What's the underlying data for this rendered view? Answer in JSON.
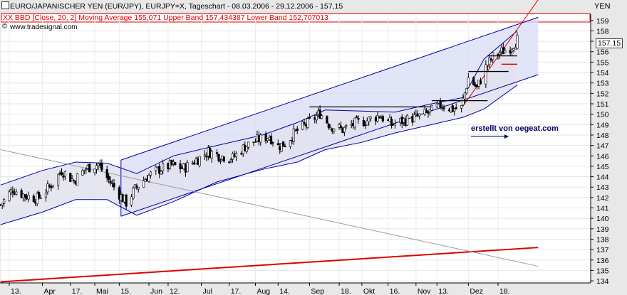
{
  "header": {
    "title_line": "EURO/JAPANISCHER YEN (EUR/JPY), EURJPY=X, Tageschart - 08.03.2006 - 29.12.2006 - 157,15",
    "indicator_prefix": "XX BBD",
    "indicator_line": "[Close, 20, 2] Moving Average 155,071 Upper Band 157,434387 Lower Band 152,707013",
    "source": "www.tradesignal.com",
    "unit": "YEN",
    "watermark": "erstellt von oegeat.com"
  },
  "colors": {
    "background": "#e8e8e8",
    "plot_background": "#ffffff",
    "candle": "#000000",
    "band_fill": "#e2e2ee",
    "band_line": "#0000aa",
    "channel_fill": "#d8dcf6",
    "channel_line": "#0000aa",
    "trend_red": "#dd0000",
    "indicator_red": "#dd0000",
    "indicator_blue": "#0000aa"
  },
  "chart_data": {
    "type": "candlestick",
    "title": "EURO/JAPANISCHER YEN (EUR/JPY), EURJPY=X, Tageschart - 08.03.2006 - 29.12.2006 - 157,15",
    "ylabel": "YEN",
    "ylim": [
      133.8,
      159.6
    ],
    "y_ticks": [
      134,
      135,
      136,
      137,
      138,
      139,
      140,
      141,
      142,
      143,
      144,
      145,
      146,
      147,
      148,
      149,
      150,
      151,
      152,
      153,
      154,
      155,
      156,
      157,
      158,
      159
    ],
    "x_ticks": [
      {
        "label": "13.",
        "date": "2006-03-13"
      },
      {
        "label": "Apr",
        "date": "2006-04-01"
      },
      {
        "label": "17.",
        "date": "2006-04-17"
      },
      {
        "label": "Mai",
        "date": "2006-05-01"
      },
      {
        "label": "15.",
        "date": "2006-05-15"
      },
      {
        "label": "Jun",
        "date": "2006-06-01"
      },
      {
        "label": "12.",
        "date": "2006-06-12"
      },
      {
        "label": "Jul",
        "date": "2006-07-01"
      },
      {
        "label": "17.",
        "date": "2006-07-17"
      },
      {
        "label": "Aug",
        "date": "2006-08-01"
      },
      {
        "label": "14.",
        "date": "2006-08-14"
      },
      {
        "label": "Sep",
        "date": "2006-09-01"
      },
      {
        "label": "18.",
        "date": "2006-09-18"
      },
      {
        "label": "Okt",
        "date": "2006-10-01"
      },
      {
        "label": "16.",
        "date": "2006-10-16"
      },
      {
        "label": "Nov",
        "date": "2006-11-01"
      },
      {
        "label": "13.",
        "date": "2006-11-13"
      },
      {
        "label": "Dez",
        "date": "2006-12-01"
      },
      {
        "label": "18.",
        "date": "2006-12-18"
      }
    ],
    "last_price": {
      "label": "157.15",
      "value": 157.15
    },
    "close_trajectory": [
      [
        "2006-03-08",
        141.3
      ],
      [
        "2006-03-15",
        142.8
      ],
      [
        "2006-03-22",
        142.2
      ],
      [
        "2006-03-29",
        141.9
      ],
      [
        "2006-04-05",
        143.0
      ],
      [
        "2006-04-12",
        144.6
      ],
      [
        "2006-04-19",
        143.6
      ],
      [
        "2006-04-26",
        144.8
      ],
      [
        "2006-05-03",
        145.2
      ],
      [
        "2006-05-08",
        143.9
      ],
      [
        "2006-05-12",
        143.0
      ],
      [
        "2006-05-16",
        142.1
      ],
      [
        "2006-05-19",
        141.5
      ],
      [
        "2006-05-24",
        142.8
      ],
      [
        "2006-05-31",
        144.0
      ],
      [
        "2006-06-07",
        144.7
      ],
      [
        "2006-06-14",
        145.1
      ],
      [
        "2006-06-21",
        144.8
      ],
      [
        "2006-06-28",
        145.6
      ],
      [
        "2006-07-05",
        146.4
      ],
      [
        "2006-07-12",
        146.0
      ],
      [
        "2006-07-19",
        145.8
      ],
      [
        "2006-07-26",
        146.9
      ],
      [
        "2006-08-02",
        147.5
      ],
      [
        "2006-08-09",
        147.9
      ],
      [
        "2006-08-14",
        146.9
      ],
      [
        "2006-08-18",
        147.2
      ],
      [
        "2006-08-24",
        148.3
      ],
      [
        "2006-08-31",
        149.1
      ],
      [
        "2006-09-07",
        150.1
      ],
      [
        "2006-09-13",
        148.9
      ],
      [
        "2006-09-20",
        148.5
      ],
      [
        "2006-09-27",
        149.1
      ],
      [
        "2006-10-04",
        149.4
      ],
      [
        "2006-10-11",
        149.9
      ],
      [
        "2006-10-18",
        149.0
      ],
      [
        "2006-10-25",
        149.4
      ],
      [
        "2006-11-01",
        149.7
      ],
      [
        "2006-11-08",
        150.1
      ],
      [
        "2006-11-15",
        150.9
      ],
      [
        "2006-11-22",
        150.5
      ],
      [
        "2006-11-27",
        150.6
      ],
      [
        "2006-12-01",
        153.5
      ],
      [
        "2006-12-06",
        152.5
      ],
      [
        "2006-12-11",
        154.5
      ],
      [
        "2006-12-15",
        155.5
      ],
      [
        "2006-12-20",
        156.0
      ],
      [
        "2006-12-25",
        156.4
      ],
      [
        "2006-12-29",
        157.15
      ]
    ],
    "bollinger": {
      "period": 20,
      "stddev": 2,
      "moving_average": 155.071,
      "upper": 157.434387,
      "lower": 152.707013,
      "upper_path": [
        [
          "2006-03-08",
          143.2
        ],
        [
          "2006-04-01",
          144.6
        ],
        [
          "2006-04-20",
          145.4
        ],
        [
          "2006-05-08",
          145.3
        ],
        [
          "2006-05-25",
          144.3
        ],
        [
          "2006-06-15",
          146.0
        ],
        [
          "2006-07-10",
          147.0
        ],
        [
          "2006-08-05",
          148.0
        ],
        [
          "2006-08-25",
          149.2
        ],
        [
          "2006-09-10",
          150.4
        ],
        [
          "2006-10-01",
          150.3
        ],
        [
          "2006-10-20",
          150.2
        ],
        [
          "2006-11-10",
          151.0
        ],
        [
          "2006-11-28",
          151.6
        ],
        [
          "2006-12-10",
          155.3
        ],
        [
          "2006-12-29",
          158.0
        ]
      ],
      "lower_path": [
        [
          "2006-03-08",
          139.4
        ],
        [
          "2006-04-01",
          140.6
        ],
        [
          "2006-04-20",
          141.8
        ],
        [
          "2006-05-08",
          141.8
        ],
        [
          "2006-05-25",
          140.3
        ],
        [
          "2006-06-15",
          141.6
        ],
        [
          "2006-07-10",
          143.5
        ],
        [
          "2006-08-05",
          144.7
        ],
        [
          "2006-08-25",
          145.4
        ],
        [
          "2006-09-10",
          146.6
        ],
        [
          "2006-10-01",
          147.3
        ],
        [
          "2006-10-20",
          148.2
        ],
        [
          "2006-11-10",
          149.0
        ],
        [
          "2006-11-28",
          149.7
        ],
        [
          "2006-12-10",
          150.5
        ],
        [
          "2006-12-29",
          152.8
        ]
      ]
    },
    "trend_channel": {
      "upper": [
        [
          "2006-05-16",
          145.6
        ],
        [
          "2007-01-10",
          159.3
        ]
      ],
      "lower": [
        [
          "2006-05-16",
          140.2
        ],
        [
          "2007-01-10",
          153.8
        ]
      ]
    },
    "trendlines": [
      {
        "name": "long-term red support",
        "color": "red",
        "points": [
          [
            "2006-03-08",
            133.9
          ],
          [
            "2007-01-10",
            137.2
          ]
        ]
      },
      {
        "name": "steep red uptrend",
        "color": "red",
        "points": [
          [
            "2006-11-28",
            150.8
          ],
          [
            "2007-01-10",
            161.0
          ]
        ]
      },
      {
        "name": "grey declining line",
        "color": "grey",
        "points": [
          [
            "2006-03-08",
            146.6
          ],
          [
            "2007-01-10",
            135.4
          ]
        ]
      }
    ],
    "horizontal_lines": [
      {
        "value": 150.7,
        "from": "2006-09-01",
        "to": "2006-11-10",
        "color": "black"
      },
      {
        "value": 151.3,
        "from": "2006-11-10",
        "to": "2006-12-12",
        "color": "black"
      },
      {
        "value": 154.1,
        "from": "2006-12-01",
        "to": "2006-12-24",
        "color": "black"
      },
      {
        "value": 155.6,
        "from": "2006-12-12",
        "to": "2006-12-29",
        "color": "black"
      },
      {
        "value": 154.8,
        "from": "2006-12-20",
        "to": "2006-12-29",
        "color": "red"
      }
    ],
    "grid": true,
    "legend_position": "top-left"
  }
}
